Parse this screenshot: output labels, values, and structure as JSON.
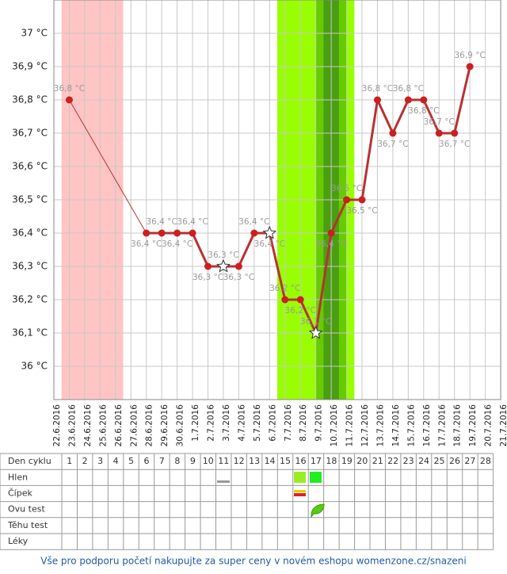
{
  "chart_data": {
    "type": "line",
    "x": [
      "22.6.2016",
      "23.6.2016",
      "24.6.2016",
      "25.6.2016",
      "26.6.2016",
      "27.6.2016",
      "28.6.2016",
      "29.6.2016",
      "30.6.2016",
      "1.7.2016",
      "2.7.2016",
      "3.7.2016",
      "4.7.2016",
      "5.7.2016",
      "6.7.2016",
      "7.7.2016",
      "8.7.2016",
      "9.7.2016",
      "10.7.2016",
      "11.7.2016",
      "12.7.2016",
      "13.7.2016",
      "14.7.2016",
      "15.7.2016",
      "16.7.2016",
      "17.7.2016",
      "18.7.2016",
      "19.7.2016",
      "20.7.2016",
      "21.7.2016"
    ],
    "series": [
      {
        "color": "#b83232",
        "values": [
          null,
          36.8,
          null,
          null,
          null,
          null,
          36.4,
          36.4,
          36.4,
          36.4,
          36.3,
          36.3,
          36.3,
          36.4,
          36.4,
          36.2,
          36.2,
          36.1,
          36.4,
          36.5,
          36.5,
          36.8,
          36.7,
          36.8,
          36.8,
          36.7,
          36.7,
          36.9,
          null,
          null
        ],
        "value_labels": [
          null,
          "36,8 °C",
          null,
          null,
          null,
          null,
          "36,4 °C",
          "36,4 °C",
          "36,4 °C",
          "36,4 °C",
          "36,3 °C",
          "36,3 °C",
          "36,3 °C",
          "36,4 °C",
          "36,4 °C",
          "36,2 °C",
          "36,2 °C",
          "36,1 °C",
          "36,4 °C",
          "36,5 °C",
          "36,5 °C",
          "36,8 °C",
          "36,7 °C",
          "36,8 °C",
          "36,8 °C",
          "36,7 °C",
          "36,7 °C",
          "36,9 °C",
          null,
          null
        ],
        "markers": [
          null,
          "dot",
          null,
          null,
          null,
          null,
          "dot",
          "dot",
          "dot",
          "dot",
          "dot",
          "star",
          "dot",
          "dot",
          "star",
          "dot",
          "dot",
          "star",
          "dot",
          "dot",
          "dot",
          "dot",
          "dot",
          "dot",
          "dot",
          "dot",
          "dot",
          "dot",
          null,
          null
        ]
      }
    ],
    "ylim": [
      35.9,
      37.1
    ],
    "yticks": [
      {
        "value": 36,
        "label": "36 °C"
      },
      {
        "value": 36.1,
        "label": "36,1 °C"
      },
      {
        "value": 36.2,
        "label": "36,2 °C"
      },
      {
        "value": 36.3,
        "label": "36,3 °C"
      },
      {
        "value": 36.4,
        "label": "36,4 °C"
      },
      {
        "value": 36.5,
        "label": "36,5 °C"
      },
      {
        "value": 36.6,
        "label": "36,6 °C"
      },
      {
        "value": 36.7,
        "label": "36,7 °C"
      },
      {
        "value": 36.8,
        "label": "36,8 °C"
      },
      {
        "value": 36.9,
        "label": "36,9 °C"
      },
      {
        "value": 37,
        "label": "37 °C"
      }
    ],
    "grid": true,
    "shaded_days": [
      {
        "from": 1,
        "to": 4,
        "color": "#ffc4c4"
      },
      {
        "from": 15,
        "to": 19,
        "color": "#99ff00"
      },
      {
        "from": 17.5,
        "to": 18.5,
        "color": "#66cc00"
      },
      {
        "from": 18,
        "to": 18,
        "color": "#4a9e12"
      }
    ]
  },
  "table": {
    "header_label": "Den cyklu",
    "days": [
      1,
      2,
      3,
      4,
      5,
      6,
      7,
      8,
      9,
      10,
      11,
      12,
      13,
      14,
      15,
      16,
      17,
      18,
      19,
      20,
      21,
      22,
      23,
      24,
      25,
      26,
      27,
      28
    ],
    "rows": [
      "Hlen",
      "Čípek",
      "Ovu test",
      "Těhu test",
      "Léky"
    ]
  },
  "footer": "Vše pro podporu početí nakupujte za super ceny v novém eshopu womenzone.cz/snazeni"
}
